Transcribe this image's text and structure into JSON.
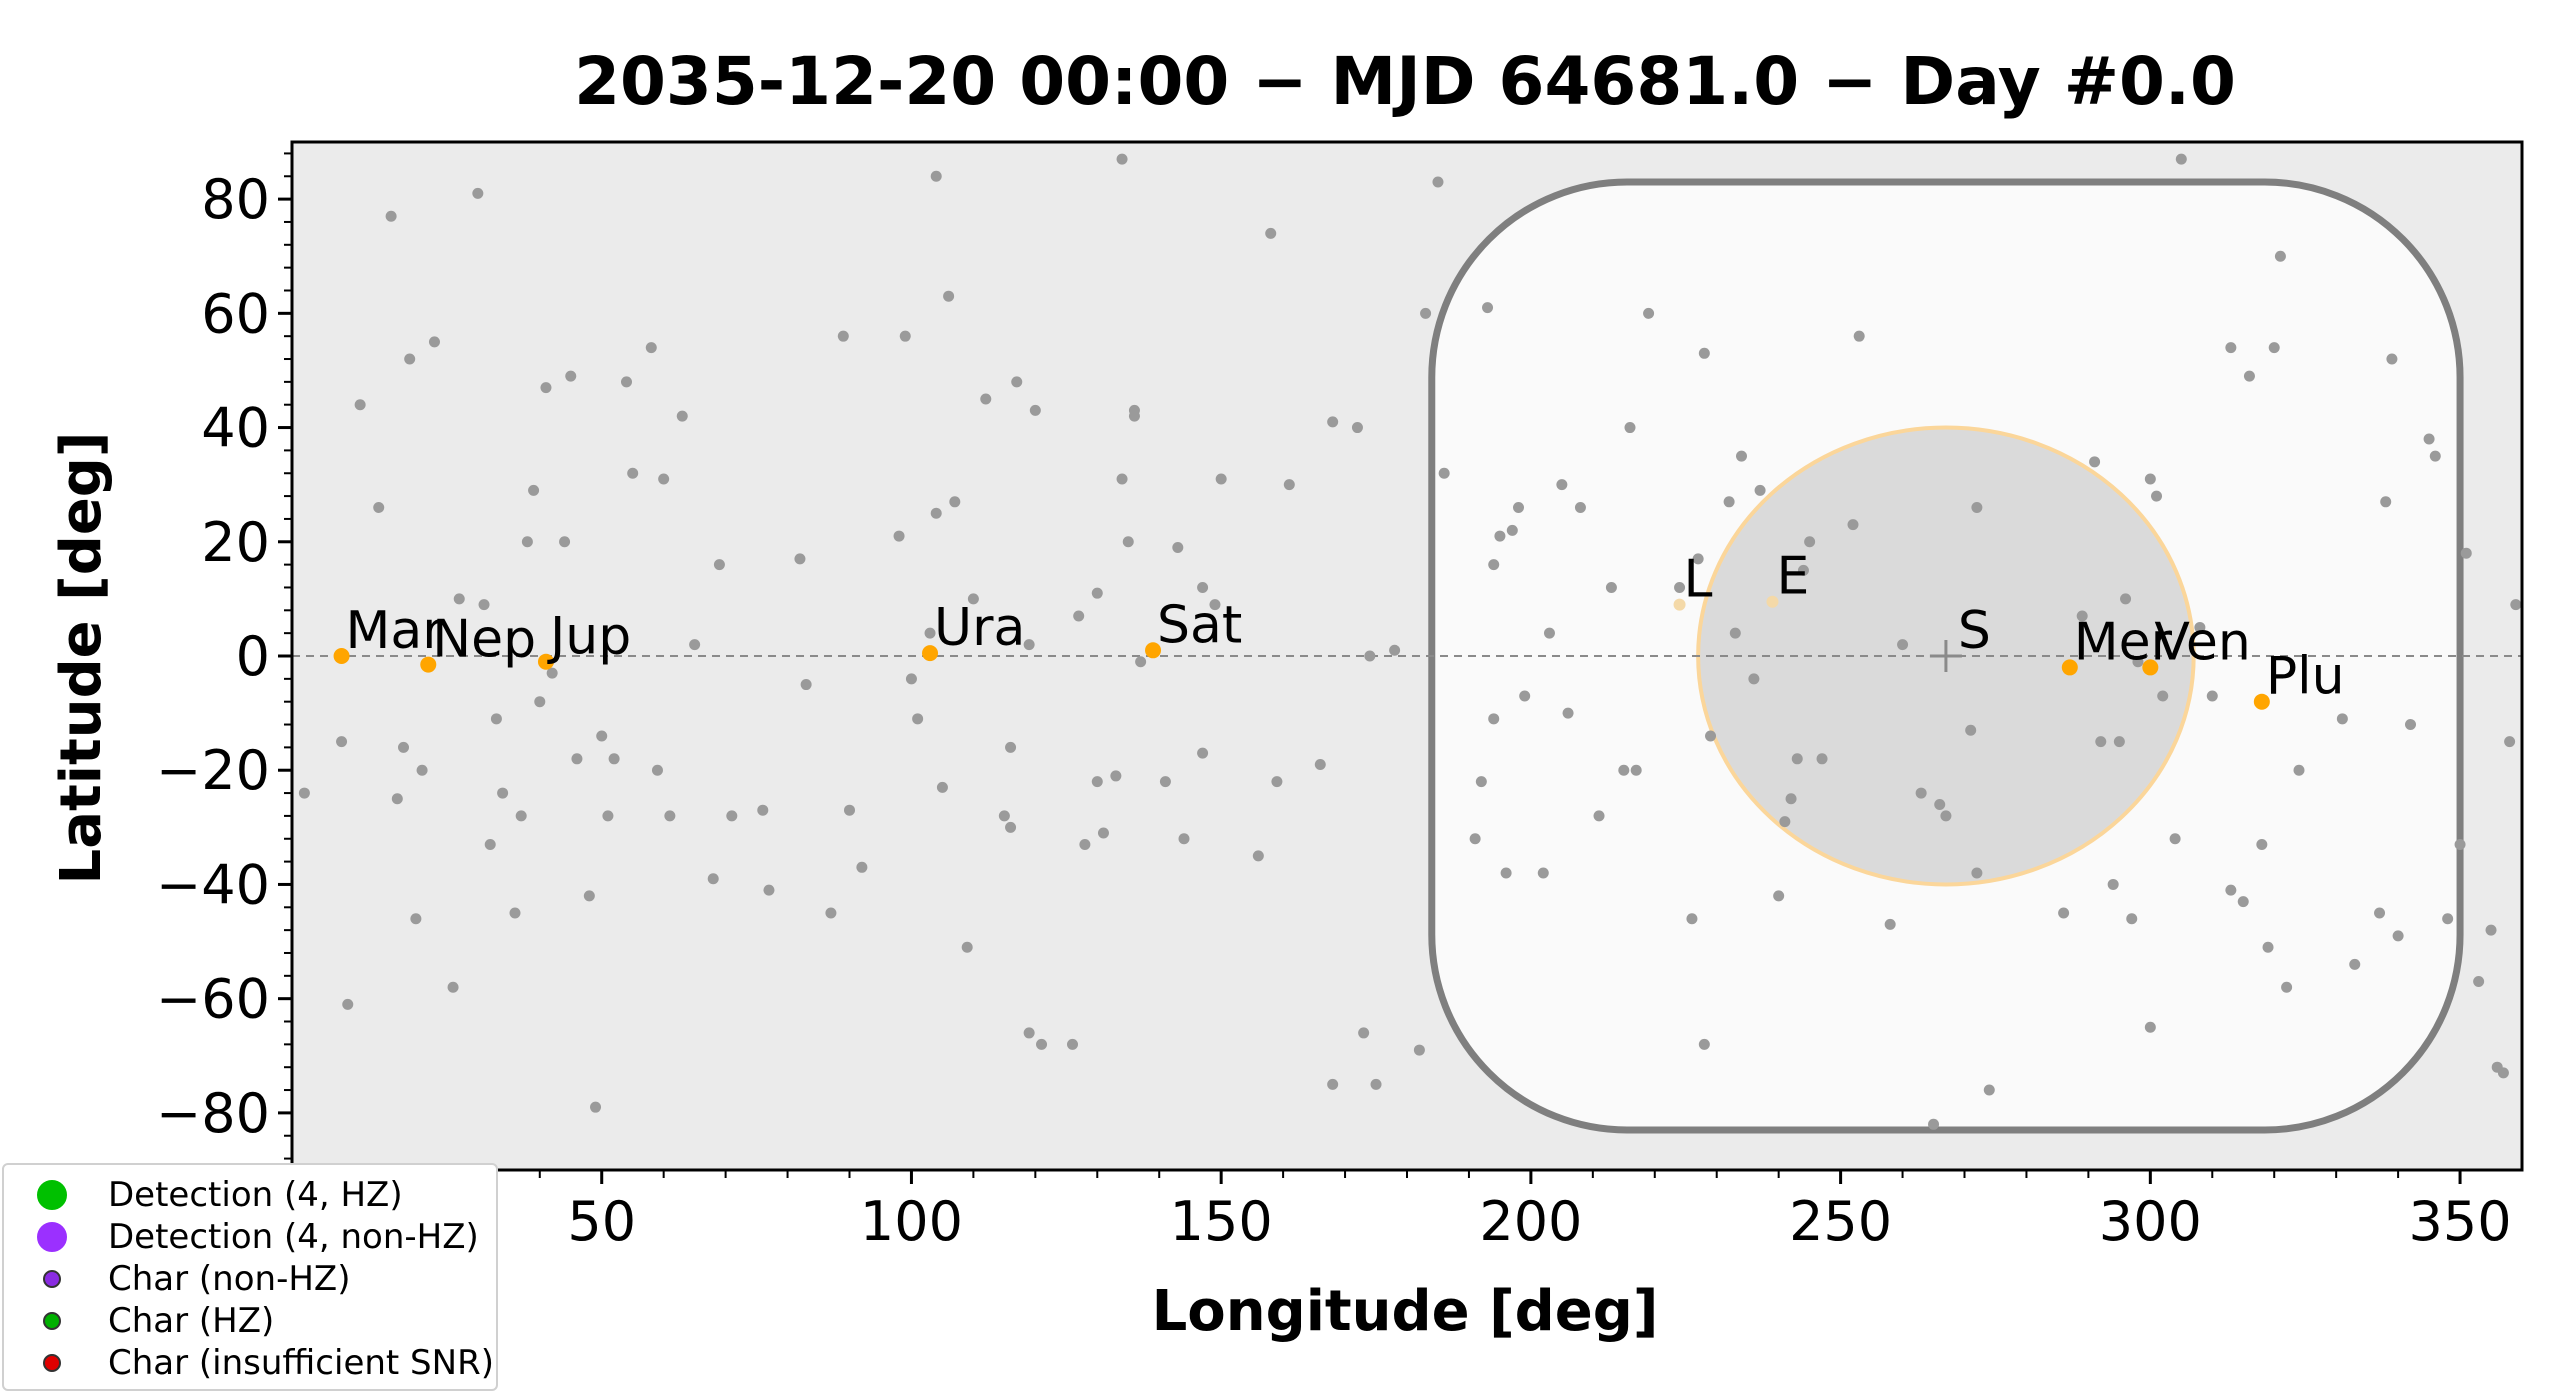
{
  "chart_data": {
    "type": "scatter",
    "title": "2035-12-20 00:00 − MJD 64681.0 − Day #0.0",
    "xlabel": "Longitude [deg]",
    "ylabel": "Latitude [deg]",
    "xlim": [
      0,
      360
    ],
    "ylim": [
      -90,
      90
    ],
    "x_ticks": [
      50,
      100,
      150,
      200,
      250,
      300,
      350
    ],
    "y_ticks": [
      -80,
      -60,
      -40,
      -20,
      0,
      20,
      40,
      60,
      80
    ],
    "colors": {
      "plot_bg": "#ebebeb",
      "keepout_fill": "#fafafa",
      "keepout_edge": "#7f7f7f",
      "sun_zone_fill": "#dadada",
      "sun_zone_edge": "#fbd69a",
      "planet": "#ffa500",
      "target": "#9a9a9a",
      "ecliptic": "#8a8a8a"
    },
    "sun": {
      "label": "S",
      "lon": 267,
      "lat": 0
    },
    "planets": [
      {
        "label": "Mar",
        "lon": 8,
        "lat": 0
      },
      {
        "label": "Nep",
        "lon": 22,
        "lat": -1.5
      },
      {
        "label": "Jup",
        "lon": 41,
        "lat": -1
      },
      {
        "label": "Ura",
        "lon": 103,
        "lat": 0.5
      },
      {
        "label": "Sat",
        "lon": 139,
        "lat": 1
      },
      {
        "label": "L",
        "lon": 224,
        "lat": 9
      },
      {
        "label": "E",
        "lon": 239,
        "lat": 9.5
      },
      {
        "label": "Mer",
        "lon": 287,
        "lat": -2
      },
      {
        "label": "Ven",
        "lon": 300,
        "lat": -2
      },
      {
        "label": "Plu",
        "lon": 318,
        "lat": -8
      }
    ],
    "keepout_region": {
      "lon_range": [
        184,
        350
      ],
      "lat_range": [
        -83,
        83
      ]
    },
    "sun_exclusion": {
      "center_lon": 267,
      "center_lat": 0,
      "radius_lon": 40,
      "radius_lat": 40
    },
    "targets": [
      [
        2,
        -24
      ],
      [
        8,
        -15
      ],
      [
        9,
        -61
      ],
      [
        11,
        44
      ],
      [
        14,
        26
      ],
      [
        16,
        77
      ],
      [
        17,
        -25
      ],
      [
        18,
        -16
      ],
      [
        19,
        52
      ],
      [
        20,
        -46
      ],
      [
        21,
        -20
      ],
      [
        23,
        55
      ],
      [
        26,
        -58
      ],
      [
        27,
        10
      ],
      [
        30,
        81
      ],
      [
        31,
        9
      ],
      [
        32,
        -33
      ],
      [
        33,
        -11
      ],
      [
        34,
        -24
      ],
      [
        36,
        -45
      ],
      [
        37,
        -28
      ],
      [
        38,
        20
      ],
      [
        39,
        29
      ],
      [
        40,
        -8
      ],
      [
        41,
        47
      ],
      [
        42,
        -3
      ],
      [
        44,
        20
      ],
      [
        45,
        49
      ],
      [
        46,
        -18
      ],
      [
        48,
        -42
      ],
      [
        49,
        -79
      ],
      [
        50,
        -14
      ],
      [
        51,
        -28
      ],
      [
        52,
        -18
      ],
      [
        54,
        48
      ],
      [
        55,
        32
      ],
      [
        58,
        54
      ],
      [
        59,
        -20
      ],
      [
        60,
        31
      ],
      [
        61,
        -28
      ],
      [
        63,
        42
      ],
      [
        65,
        2
      ],
      [
        68,
        -39
      ],
      [
        69,
        16
      ],
      [
        71,
        -28
      ],
      [
        76,
        -27
      ],
      [
        77,
        -41
      ],
      [
        82,
        17
      ],
      [
        83,
        -5
      ],
      [
        87,
        -45
      ],
      [
        89,
        56
      ],
      [
        90,
        -27
      ],
      [
        92,
        -37
      ],
      [
        98,
        21
      ],
      [
        99,
        56
      ],
      [
        100,
        -4
      ],
      [
        101,
        -11
      ],
      [
        103,
        4
      ],
      [
        104,
        25
      ],
      [
        104,
        84
      ],
      [
        105,
        -23
      ],
      [
        106,
        63
      ],
      [
        107,
        27
      ],
      [
        109,
        -51
      ],
      [
        110,
        10
      ],
      [
        112,
        45
      ],
      [
        115,
        -28
      ],
      [
        116,
        -16
      ],
      [
        116,
        -30
      ],
      [
        117,
        48
      ],
      [
        119,
        -66
      ],
      [
        119,
        2
      ],
      [
        120,
        43
      ],
      [
        121,
        -68
      ],
      [
        126,
        -68
      ],
      [
        127,
        7
      ],
      [
        128,
        -33
      ],
      [
        130,
        11
      ],
      [
        130,
        -22
      ],
      [
        131,
        -31
      ],
      [
        133,
        -21
      ],
      [
        134,
        87
      ],
      [
        134,
        31
      ],
      [
        135,
        20
      ],
      [
        136,
        43
      ],
      [
        136,
        42
      ],
      [
        137,
        -1
      ],
      [
        141,
        -22
      ],
      [
        143,
        19
      ],
      [
        144,
        -32
      ],
      [
        147,
        -17
      ],
      [
        147,
        12
      ],
      [
        149,
        9
      ],
      [
        150,
        31
      ],
      [
        156,
        -35
      ],
      [
        158,
        74
      ],
      [
        159,
        -22
      ],
      [
        161,
        30
      ],
      [
        166,
        -19
      ],
      [
        168,
        41
      ],
      [
        168,
        -75
      ],
      [
        172,
        40
      ],
      [
        173,
        -66
      ],
      [
        174,
        0
      ],
      [
        175,
        -75
      ],
      [
        178,
        1
      ],
      [
        182,
        -69
      ],
      [
        183,
        60
      ],
      [
        185,
        83
      ],
      [
        186,
        32
      ],
      [
        191,
        -32
      ],
      [
        192,
        -22
      ],
      [
        193,
        61
      ],
      [
        194,
        -11
      ],
      [
        194,
        16
      ],
      [
        195,
        21
      ],
      [
        196,
        -38
      ],
      [
        197,
        22
      ],
      [
        198,
        26
      ],
      [
        199,
        -7
      ],
      [
        202,
        -38
      ],
      [
        203,
        4
      ],
      [
        205,
        30
      ],
      [
        206,
        -10
      ],
      [
        208,
        26
      ],
      [
        211,
        -28
      ],
      [
        213,
        12
      ],
      [
        215,
        -20
      ],
      [
        216,
        40
      ],
      [
        217,
        -20
      ],
      [
        219,
        60
      ],
      [
        224,
        12
      ],
      [
        226,
        -46
      ],
      [
        227,
        17
      ],
      [
        228,
        -68
      ],
      [
        228,
        53
      ],
      [
        229,
        -14
      ],
      [
        232,
        27
      ],
      [
        233,
        4
      ],
      [
        234,
        35
      ],
      [
        236,
        -4
      ],
      [
        237,
        29
      ],
      [
        240,
        -42
      ],
      [
        241,
        -29
      ],
      [
        242,
        -25
      ],
      [
        243,
        -18
      ],
      [
        244,
        15
      ],
      [
        245,
        20
      ],
      [
        247,
        -18
      ],
      [
        252,
        23
      ],
      [
        253,
        56
      ],
      [
        258,
        -47
      ],
      [
        260,
        2
      ],
      [
        263,
        -24
      ],
      [
        265,
        -82
      ],
      [
        266,
        -26
      ],
      [
        267,
        -28
      ],
      [
        271,
        -13
      ],
      [
        272,
        26
      ],
      [
        272,
        -38
      ],
      [
        274,
        -76
      ],
      [
        286,
        -45
      ],
      [
        289,
        7
      ],
      [
        291,
        34
      ],
      [
        292,
        -15
      ],
      [
        294,
        -40
      ],
      [
        295,
        -15
      ],
      [
        296,
        10
      ],
      [
        297,
        -46
      ],
      [
        298,
        -1
      ],
      [
        300,
        31
      ],
      [
        300,
        -65
      ],
      [
        301,
        28
      ],
      [
        302,
        -7
      ],
      [
        304,
        -32
      ],
      [
        305,
        87
      ],
      [
        308,
        5
      ],
      [
        310,
        -7
      ],
      [
        313,
        -41
      ],
      [
        313,
        54
      ],
      [
        315,
        -43
      ],
      [
        316,
        49
      ],
      [
        318,
        -33
      ],
      [
        318,
        -8
      ],
      [
        319,
        -51
      ],
      [
        320,
        54
      ],
      [
        321,
        70
      ],
      [
        322,
        -58
      ],
      [
        324,
        -20
      ],
      [
        331,
        -11
      ],
      [
        333,
        -54
      ],
      [
        337,
        -45
      ],
      [
        338,
        27
      ],
      [
        339,
        52
      ],
      [
        340,
        -49
      ],
      [
        342,
        -12
      ],
      [
        345,
        38
      ],
      [
        346,
        35
      ],
      [
        348,
        -46
      ],
      [
        350,
        -33
      ],
      [
        351,
        18
      ],
      [
        353,
        -57
      ],
      [
        355,
        -48
      ],
      [
        356,
        -72
      ],
      [
        357,
        -73
      ],
      [
        358,
        -15
      ],
      [
        359,
        9
      ]
    ]
  },
  "legend": {
    "items": [
      {
        "label": "Detection (4, HZ)",
        "color": "#00c000",
        "size": "large"
      },
      {
        "label": "Detection (4, non-HZ)",
        "color": "#9b30ff",
        "size": "large"
      },
      {
        "label": "Char (non-HZ)",
        "color": "#8a2be2",
        "size": "small"
      },
      {
        "label": "Char (HZ)",
        "color": "#00b000",
        "size": "small"
      },
      {
        "label": "Char (insufficient SNR)",
        "color": "#e00000",
        "size": "small"
      }
    ]
  }
}
